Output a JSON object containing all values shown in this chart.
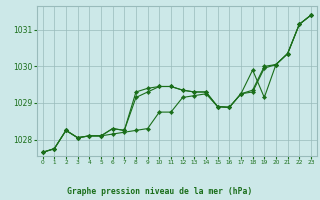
{
  "title": "Graphe pression niveau de la mer (hPa)",
  "bg_color": "#cce8e8",
  "plot_bg_color": "#cce8e8",
  "grid_color": "#99bbbb",
  "line_color": "#1a6e1a",
  "marker_color": "#1a6e1a",
  "title_bg": "#2d7a2d",
  "title_fg": "#ffffff",
  "xlim": [
    -0.5,
    23.5
  ],
  "ylim": [
    1027.55,
    1031.65
  ],
  "yticks": [
    1028,
    1029,
    1030,
    1031
  ],
  "xticks": [
    0,
    1,
    2,
    3,
    4,
    5,
    6,
    7,
    8,
    9,
    10,
    11,
    12,
    13,
    14,
    15,
    16,
    17,
    18,
    19,
    20,
    21,
    22,
    23
  ],
  "series": [
    [
      1027.65,
      1027.75,
      1028.25,
      1028.05,
      1028.1,
      1028.1,
      1028.15,
      1028.2,
      1028.25,
      1028.3,
      1028.75,
      1028.75,
      1029.15,
      1029.2,
      1029.25,
      1028.9,
      1028.88,
      1029.25,
      1029.3,
      1029.95,
      1030.05,
      1030.35,
      1031.15,
      1031.4
    ],
    [
      1027.65,
      1027.75,
      1028.25,
      1028.05,
      1028.1,
      1028.1,
      1028.3,
      1028.25,
      1029.15,
      1029.3,
      1029.45,
      1029.45,
      1029.35,
      1029.3,
      1029.3,
      1028.9,
      1028.88,
      1029.25,
      1029.35,
      1030.0,
      1030.05,
      1030.35,
      1031.15,
      1031.4
    ],
    [
      1027.65,
      1027.75,
      1028.25,
      1028.05,
      1028.1,
      1028.1,
      1028.3,
      1028.25,
      1029.3,
      1029.4,
      1029.45,
      1029.45,
      1029.35,
      1029.3,
      1029.3,
      1028.9,
      1028.88,
      1029.25,
      1029.9,
      1029.15,
      1030.05,
      1030.35,
      1031.15,
      1031.4
    ]
  ]
}
